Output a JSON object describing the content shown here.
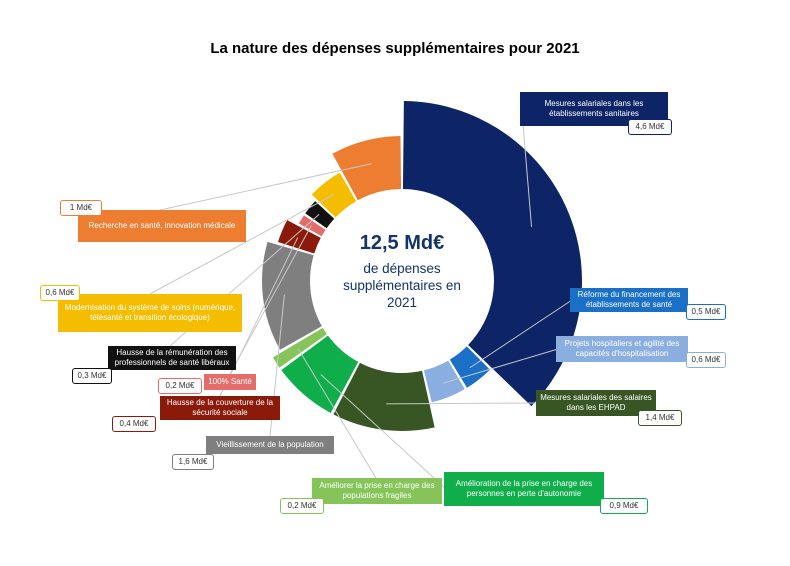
{
  "title": "La nature des dépenses supplémentaires pour 2021",
  "center": {
    "total": "12,5 Md€",
    "text": "de dépenses supplémentaires en 2021"
  },
  "chart_data": {
    "type": "pie",
    "title": "La nature des dépenses supplémentaires pour 2021",
    "unit": "Md€",
    "slices": [
      {
        "label": "Mesures salariales dans les établissements sanitaires",
        "value": 4.6,
        "value_label": "4,6 Md€",
        "color": "#0d2466"
      },
      {
        "label": "Réforme du financement des établissements de santé",
        "value": 0.5,
        "value_label": "0,5 Md€",
        "color": "#1a6fc7"
      },
      {
        "label": "Projets hospitaliers et agilité des capacités d'hospitalisation",
        "value": 0.6,
        "value_label": "0,6 Md€",
        "color": "#8aaee0"
      },
      {
        "label": "Mesures salariales des salaires dans les EHPAD",
        "value": 1.4,
        "value_label": "1,4 Md€",
        "color": "#375623"
      },
      {
        "label": "Amélioration de la prise en charge des personnes en perte d'autonomie",
        "value": 0.9,
        "value_label": "0,9 Md€",
        "color": "#0fae4a"
      },
      {
        "label": "Améliorer la prise en charge des populations fragiles",
        "value": 0.2,
        "value_label": "0,2 Md€",
        "color": "#86c45a"
      },
      {
        "label": "Vieillissement de la population",
        "value": 1.6,
        "value_label": "1,6 Md€",
        "color": "#7f7f7f"
      },
      {
        "label": "Hausse de la couverture de la sécurité sociale",
        "value": 0.4,
        "value_label": "0,4 Md€",
        "color": "#8b1a0b"
      },
      {
        "label": "100% Santé",
        "value": 0.2,
        "value_label": "0,2 Md€",
        "color": "#e46c6a"
      },
      {
        "label": "Hausse de la rémunération des professionnels de santé libéraux",
        "value": 0.3,
        "value_label": "0,3 Md€",
        "color": "#111111"
      },
      {
        "label": "Modernisation du système de soins (numérique, télésanté et transition écologique)",
        "value": 0.6,
        "value_label": "0,6 Md€",
        "color": "#f5bd00"
      },
      {
        "label": "Recherche en santé, innovation médicale",
        "value": 1.0,
        "value_label": "1 Md€",
        "color": "#ed7d31"
      }
    ]
  }
}
